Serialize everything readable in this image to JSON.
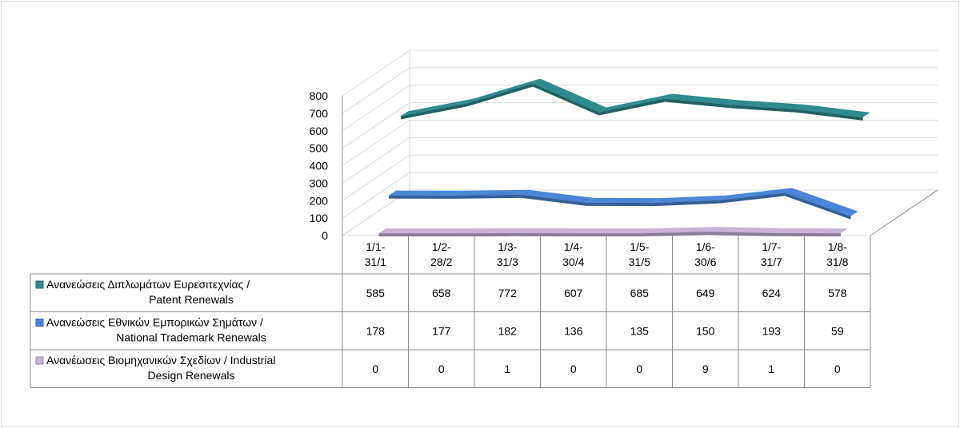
{
  "chart_data": {
    "type": "line",
    "title": "",
    "xlabel": "",
    "ylabel": "",
    "ylim": [
      0,
      800
    ],
    "yticks": [
      "0",
      "100",
      "200",
      "300",
      "400",
      "500",
      "600",
      "700",
      "800"
    ],
    "categories": [
      [
        "1/1-",
        "31/1"
      ],
      [
        "1/2-",
        "28/2"
      ],
      [
        "1/3-",
        "31/3"
      ],
      [
        "1/4-",
        "30/4"
      ],
      [
        "1/5-",
        "31/5"
      ],
      [
        "1/6-",
        "30/6"
      ],
      [
        "1/7-",
        "31/7"
      ],
      [
        "1/8-",
        "31/8"
      ]
    ],
    "grid": true,
    "three_d": true,
    "legend_placement": "data-table",
    "series": [
      {
        "name": [
          "Ανανεώσεις Διπλωμάτων Ευρεσιτεχνίας  /",
          "Patent Renewals"
        ],
        "color": "#2e8b8e",
        "values": [
          585,
          658,
          772,
          607,
          685,
          649,
          624,
          578
        ]
      },
      {
        "name": [
          "Ανανεώσεις Εθνικών Εμπορικών Σημάτων /",
          "National Trademark Renewals"
        ],
        "color": "#4a86d8",
        "values": [
          178,
          177,
          182,
          136,
          135,
          150,
          193,
          59
        ]
      },
      {
        "name": [
          "Ανανέωσεις Βιομηχανικών Σχεδίων / Industrial",
          "Design Renewals"
        ],
        "color": "#c7b3d6",
        "values": [
          0,
          0,
          1,
          0,
          0,
          9,
          1,
          0
        ]
      }
    ]
  }
}
